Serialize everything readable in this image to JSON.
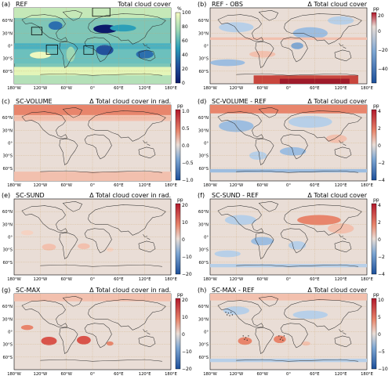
{
  "colors": {
    "sequential_low": "#0c1a6b",
    "sequential_mid": "#2c9fb8",
    "sequential_high": "#f6fbc2",
    "diverging_neg": "#1c4f9a",
    "diverging_zero": "#e9ddd6",
    "diverging_pos": "#b2182b",
    "land_outline": "#222222",
    "gridline": "#c9a46a"
  },
  "axes": {
    "lat_labels": [
      "60°N",
      "30°N",
      "0°",
      "30°S",
      "60°S"
    ],
    "lon_labels": [
      "180°W",
      "120°W",
      "60°W",
      "0°",
      "60°E",
      "120°E",
      "180°E"
    ]
  },
  "panels": [
    {
      "letter": "(a)",
      "label": "REF",
      "title": "Total cloud cover",
      "unit": "%",
      "colorbar": "sequential",
      "ticks": [
        "100",
        "80",
        "60",
        "40",
        "20",
        "0"
      ]
    },
    {
      "letter": "(b)",
      "label": "REF - OBS",
      "title": "Δ Total cloud cover",
      "unit": "pp",
      "colorbar": "diverging",
      "ticks": [
        "20",
        "0",
        "−20",
        "−40"
      ]
    },
    {
      "letter": "(c)",
      "label": "SC-VOLUME",
      "title": "Δ Total cloud cover in rad.",
      "unit": "pp",
      "colorbar": "diverging",
      "ticks": [
        "1.0",
        "0.5",
        "0.0",
        "−0.5",
        "−1.0"
      ]
    },
    {
      "letter": "(d)",
      "label": "SC-VOLUME - REF",
      "title": "Δ Total cloud cover",
      "unit": "pp",
      "colorbar": "diverging",
      "ticks": [
        "4",
        "2",
        "0",
        "−2",
        "−4"
      ]
    },
    {
      "letter": "(e)",
      "label": "SC-SUND",
      "title": "Δ Total cloud cover in rad.",
      "unit": "pp",
      "colorbar": "diverging",
      "ticks": [
        "20",
        "10",
        "0",
        "−10",
        "−20"
      ]
    },
    {
      "letter": "(f)",
      "label": "SC-SUND - REF",
      "title": "Δ Total cloud cover",
      "unit": "pp",
      "colorbar": "diverging",
      "ticks": [
        "4",
        "2",
        "0",
        "−2",
        "−4"
      ]
    },
    {
      "letter": "(g)",
      "label": "SC-MAX",
      "title": "Δ Total cloud cover in rad.",
      "unit": "pp",
      "colorbar": "diverging",
      "ticks": [
        "20",
        "10",
        "0",
        "−10",
        "−20"
      ]
    },
    {
      "letter": "(h)",
      "label": "SC-MAX - REF",
      "title": "Δ Total cloud cover",
      "unit": "pp",
      "colorbar": "diverging",
      "ticks": [
        "10",
        "5",
        "0",
        "−5",
        "−10"
      ]
    }
  ]
}
